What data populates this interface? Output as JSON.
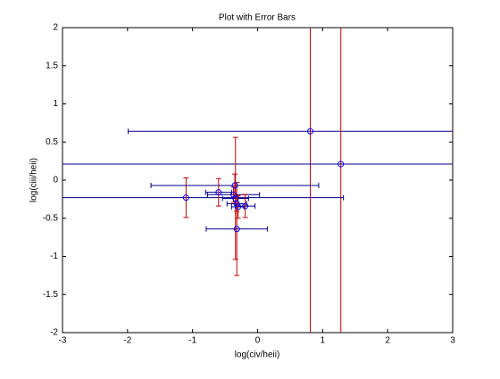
{
  "chart_data": {
    "type": "errorbar",
    "title": "Plot with Error Bars",
    "xlabel": "log(civ/heii)",
    "ylabel": "log(ciii/heii)",
    "x": [
      0.81,
      1.28,
      -1.1,
      -0.6,
      -0.35,
      -0.37,
      -0.34,
      -0.32,
      -0.3,
      -0.19,
      -0.32
    ],
    "y": [
      0.64,
      0.21,
      -0.23,
      -0.16,
      -0.07,
      -0.19,
      -0.24,
      -0.31,
      -0.35,
      -0.34,
      -0.64
    ],
    "xerr": [
      2.8,
      4.5,
      2.42,
      0.2,
      1.29,
      0.4,
      0.2,
      0.15,
      0.1,
      0.15,
      0.47
    ],
    "yerr": [
      3,
      3,
      0.26,
      0.18,
      0.15,
      0.1,
      0.8,
      0.1,
      0.15,
      0.15,
      0.61
    ],
    "marker_color": "#0000ff",
    "xerr_color": "#00008b",
    "yerr_color": "#cc0000",
    "xlim": [
      -3,
      3
    ],
    "ylim": [
      -2,
      2
    ],
    "xticks": [
      -3,
      -2,
      -1,
      0,
      1,
      2,
      3
    ],
    "yticks": [
      -2,
      -1.5,
      -1,
      -0.5,
      0,
      0.5,
      1,
      1.5,
      2
    ]
  }
}
